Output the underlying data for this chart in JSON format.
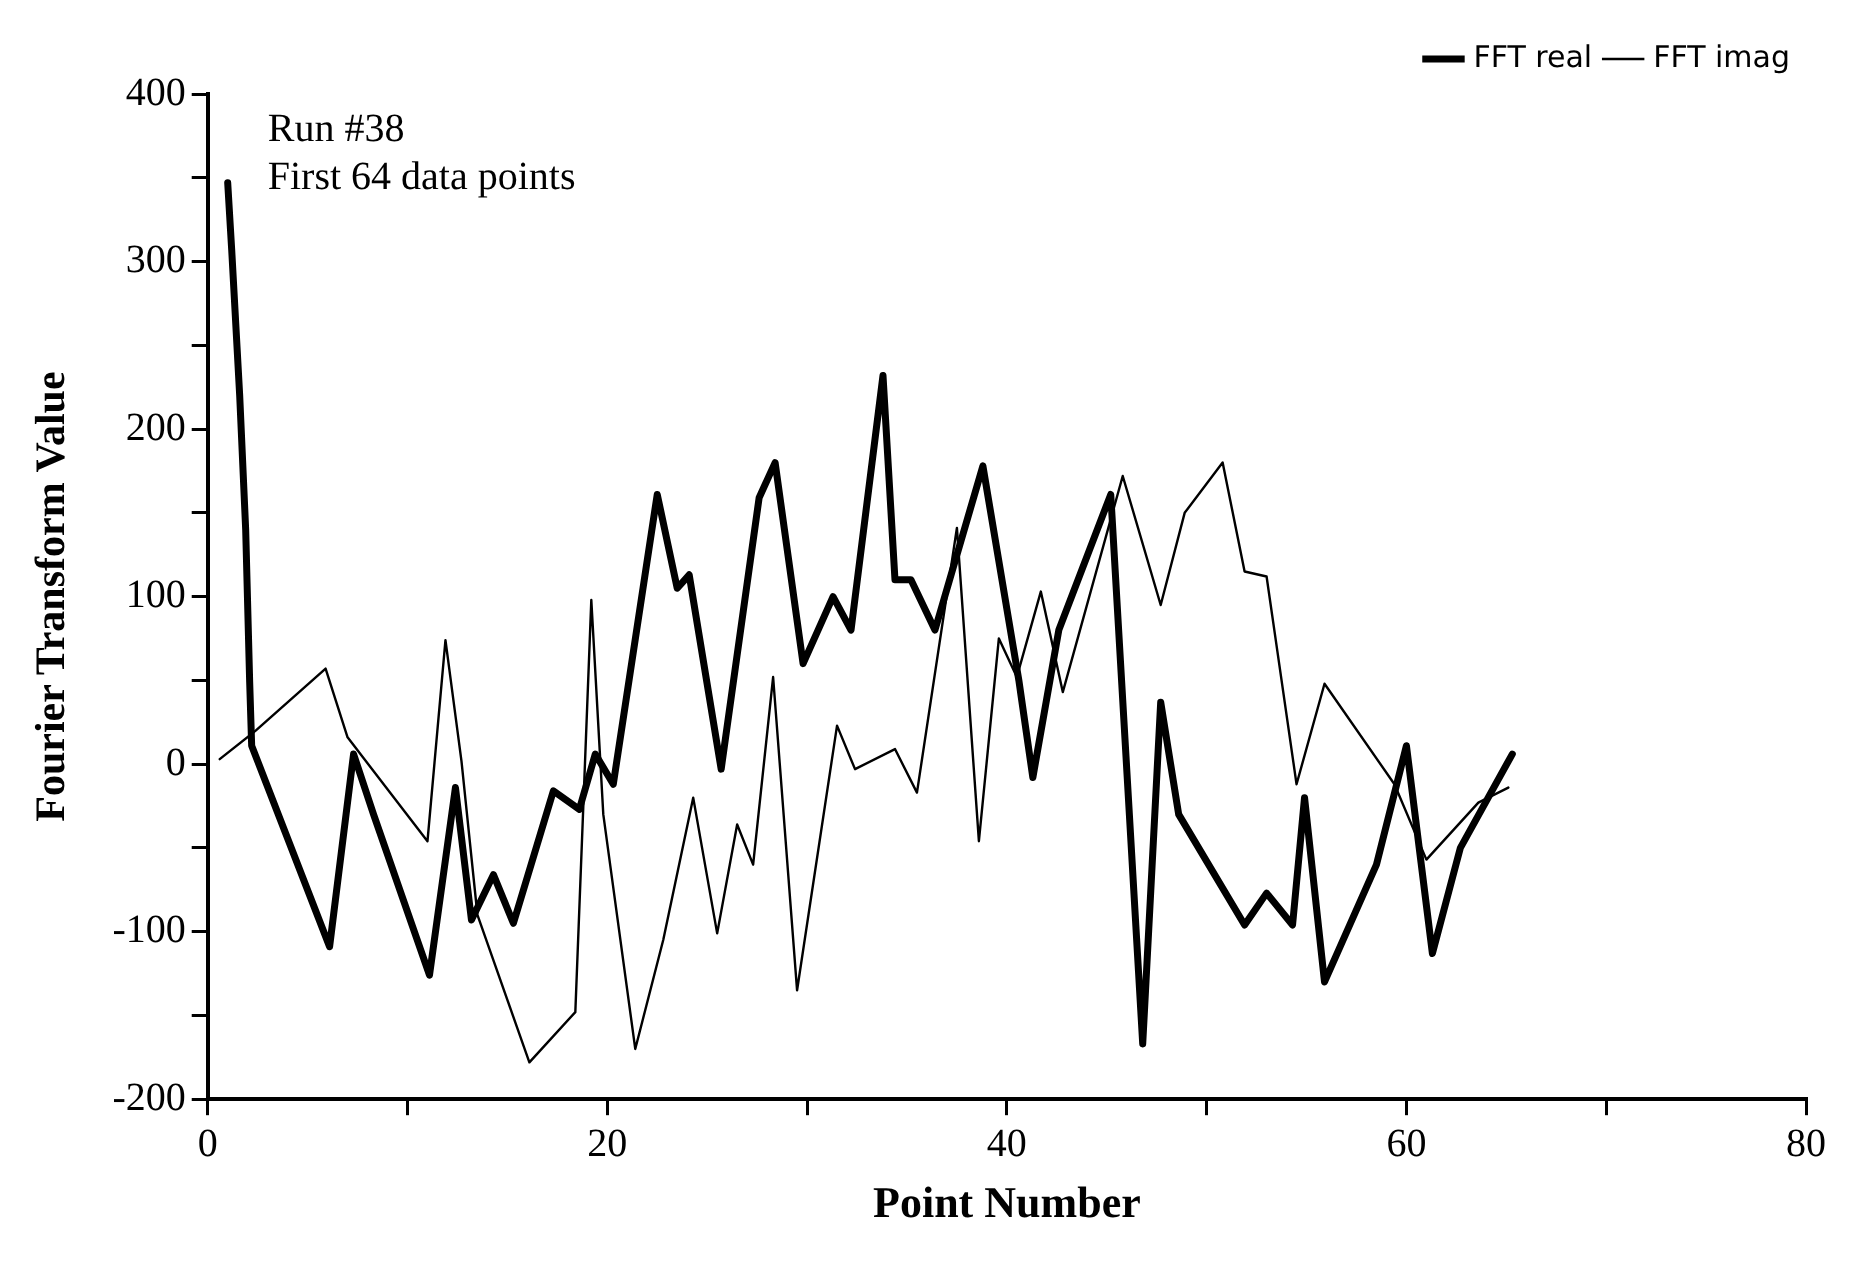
{
  "chart_data": {
    "type": "line",
    "xlabel": "Point Number",
    "ylabel": "Fourier Transform Value",
    "annotations": [
      "Run #38",
      "First 64 data points"
    ],
    "xlim": [
      0,
      80
    ],
    "xticks": [
      0,
      {
        "value": 10,
        "label": null
      },
      20,
      {
        "value": 30,
        "label": null
      },
      40,
      {
        "value": 50,
        "label": null
      },
      60,
      {
        "value": 70,
        "label": null
      },
      80
    ],
    "ylim": [
      -200,
      400
    ],
    "yticks": [
      -200,
      {
        "value": -150,
        "label": null
      },
      -100,
      {
        "value": -50,
        "label": null
      },
      0,
      {
        "value": 50,
        "label": null
      },
      100,
      {
        "value": 150,
        "label": null
      },
      200,
      {
        "value": 250,
        "label": null
      },
      300,
      {
        "value": 350,
        "label": null
      },
      400
    ],
    "grid": false,
    "legend": "top right",
    "marker": "none",
    "line_style": "solid",
    "series": [
      {
        "name": "FFT real",
        "color": "#000000",
        "x": [
          1.0,
          1.2,
          1.6,
          1.9,
          2.1,
          2.2,
          6.1,
          7.3,
          8.3,
          11.1,
          12.4,
          13.2,
          14.3,
          15.3,
          17.3,
          18.6,
          19.4,
          20.3,
          22.5,
          23.5,
          24.1,
          25.7,
          27.6,
          28.4,
          29.8,
          31.3,
          32.2,
          33.8,
          34.4,
          35.2,
          36.4,
          38.8,
          40.6,
          41.3,
          42.6,
          45.2,
          46.8,
          47.7,
          48.6,
          51.9,
          53,
          54.3,
          54.9,
          55.9,
          58.5,
          60,
          61.3,
          62.7,
          65.3
        ],
        "values": [
          347,
          307,
          220,
          140,
          49,
          11,
          -109,
          6,
          -30,
          -126,
          -14,
          -93,
          -66,
          -95,
          -16,
          -27,
          6,
          -12,
          161,
          105,
          113,
          -3,
          159,
          180,
          60,
          100,
          80,
          232,
          110,
          110,
          80,
          178,
          50,
          -8,
          80,
          161,
          -167,
          37,
          -30,
          -96,
          -77,
          -96,
          -20,
          -130,
          -60,
          11,
          -113,
          -50,
          6
        ]
      },
      {
        "name": "FFT imag",
        "color": "#000000",
        "x": [
          0.6,
          2.4,
          5.9,
          7,
          11,
          11.9,
          12.7,
          13.5,
          16.1,
          18.4,
          19.2,
          19.8,
          21.4,
          22.8,
          24.3,
          25.5,
          26.5,
          27.3,
          28.3,
          29.5,
          31.5,
          32.4,
          34.4,
          35.5,
          37.5,
          38.6,
          39.6,
          40.5,
          41.7,
          42.8,
          45.8,
          47.7,
          48.9,
          50.8,
          51.9,
          53,
          54.5,
          55.9,
          59.4,
          61,
          63.6,
          65.1
        ],
        "values": [
          3,
          20,
          57,
          16,
          -46,
          74,
          2,
          -90,
          -178,
          -148,
          98,
          -30,
          -170,
          -105,
          -20,
          -101,
          -36,
          -60,
          52,
          -135,
          23,
          -3,
          9,
          -17,
          141,
          -46,
          75,
          52,
          103,
          43,
          172,
          95,
          150,
          180,
          115,
          112,
          -12,
          48,
          -12,
          -57,
          -23,
          -14
        ]
      }
    ]
  }
}
